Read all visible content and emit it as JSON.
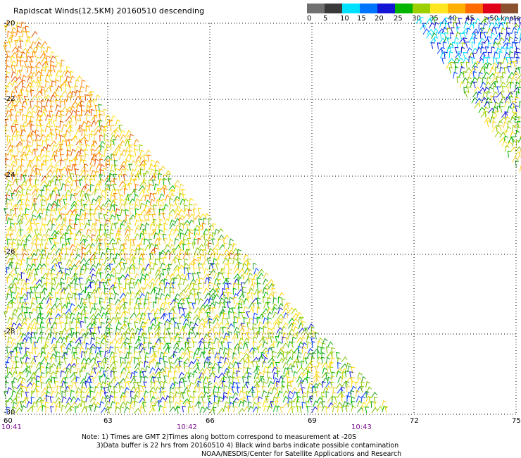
{
  "title": "Rapidscat Winds(12.5KM) 20160510 descending",
  "color_scale": {
    "colors": [
      "#707070",
      "#3a3a3a",
      "#00e0ff",
      "#0074ff",
      "#1414d4",
      "#00b400",
      "#9cd000",
      "#ffe620",
      "#ffb000",
      "#ff6a00",
      "#e0001a",
      "#8a5030",
      "#c00090",
      "#d800ff",
      "#5a0070"
    ],
    "labels": [
      "0",
      "5",
      "10",
      "15",
      "20",
      "25",
      "30",
      "35",
      "40",
      "45",
      ">50 knots"
    ]
  },
  "map": {
    "lon_labels": [
      "60",
      "63",
      "66",
      "69",
      "72",
      "75"
    ],
    "lat_labels": [
      "-20",
      "-22",
      "-24",
      "-26",
      "-28",
      "-30"
    ],
    "time_labels": [
      "10:41",
      "10:42",
      "10:43"
    ],
    "lon_range": [
      60,
      75
    ],
    "lat_range": [
      -30,
      -20
    ]
  },
  "notes": {
    "line1": "Note: 1) Times are GMT 2)Times along bottom correspond to measurement at -20S",
    "line2": "3)Data buffer is 22 hrs from 20160510 4) Black wind barbs indicate possible contamination",
    "credit": "NOAA/NESDIS/Center for Satellite Applications and Research"
  }
}
